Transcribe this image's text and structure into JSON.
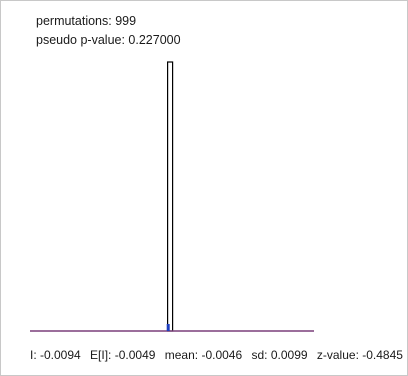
{
  "header": {
    "permutations_label": "permutations: 999",
    "pvalue_label": "pseudo p-value: 0.227000"
  },
  "footer": {
    "i_label": "I: -0.0094",
    "ei_label": "E[I]: -0.0049",
    "mean_label": "mean: -0.0046",
    "sd_label": "sd: 0.0099",
    "z_label": "z-value: -0.4845"
  },
  "chart_data": {
    "type": "bar",
    "title": "",
    "xlabel": "",
    "ylabel": "",
    "permutations": 999,
    "pseudo_p_value": 0.227,
    "observed_I": -0.0094,
    "expected_I": -0.0049,
    "mean": -0.0046,
    "sd": 0.0099,
    "z_value": -0.4845,
    "xlim": [
      -0.35,
      0.35
    ],
    "bins": [
      {
        "x": -0.0046,
        "count": 999
      }
    ],
    "colors": {
      "histogram_outline": "#000000",
      "histogram_fill": "#ffffff",
      "observed_marker": "#1f3fbf",
      "baseline": "#7a3f7a"
    }
  }
}
